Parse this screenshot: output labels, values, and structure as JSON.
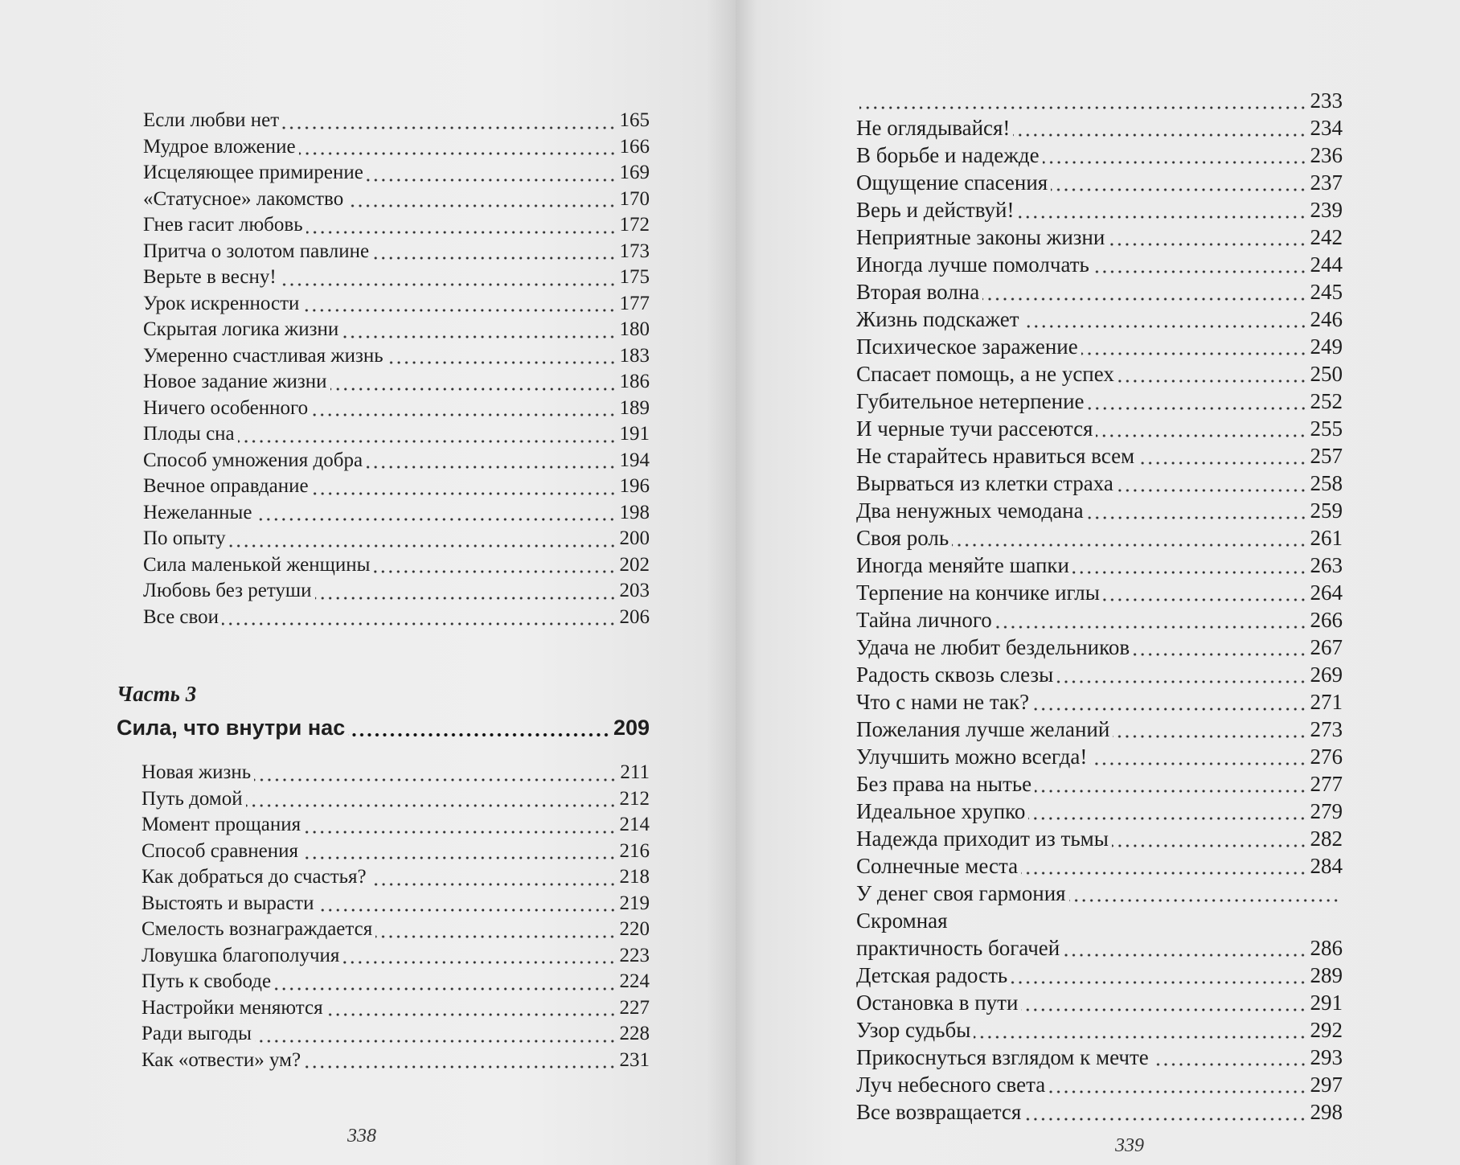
{
  "left_page": {
    "entries_before": [
      {
        "title": "Если любви нет",
        "page": "165"
      },
      {
        "title": "Мудрое вложение",
        "page": "166"
      },
      {
        "title": "Исцеляющее примирение",
        "page": "169"
      },
      {
        "title": "«Статусное» лакомство",
        "page": "170"
      },
      {
        "title": "Гнев гасит любовь",
        "page": "172"
      },
      {
        "title": "Притча о золотом павлине",
        "page": "173"
      },
      {
        "title": "Верьте в весну!",
        "page": "175"
      },
      {
        "title": "Урок искренности",
        "page": "177"
      },
      {
        "title": "Скрытая логика жизни",
        "page": "180"
      },
      {
        "title": "Умеренно счастливая жизнь",
        "page": "183"
      },
      {
        "title": "Новое задание жизни",
        "page": "186"
      },
      {
        "title": "Ничего особенного",
        "page": "189"
      },
      {
        "title": "Плоды сна",
        "page": "191"
      },
      {
        "title": "Способ умножения добра",
        "page": "194"
      },
      {
        "title": "Вечное оправдание",
        "page": "196"
      },
      {
        "title": "Нежеланные",
        "page": "198"
      },
      {
        "title": "По опыту",
        "page": "200"
      },
      {
        "title": "Сила маленькой женщины",
        "page": "202"
      },
      {
        "title": "Любовь без ретуши",
        "page": "203"
      },
      {
        "title": "Все свои",
        "page": "206"
      }
    ],
    "part": {
      "label": "Часть 3",
      "title": "Сила, что внутри нас",
      "page": "209"
    },
    "entries_after": [
      {
        "title": "Новая жизнь",
        "page": "211"
      },
      {
        "title": "Путь домой",
        "page": "212"
      },
      {
        "title": "Момент прощания",
        "page": "214"
      },
      {
        "title": "Способ сравнения",
        "page": "216"
      },
      {
        "title": "Как добраться до счастья?",
        "page": "218"
      },
      {
        "title": "Выстоять и вырасти",
        "page": "219"
      },
      {
        "title": "Смелость вознаграждается",
        "page": "220"
      },
      {
        "title": "Ловушка благополучия",
        "page": "223"
      },
      {
        "title": "Путь к свободе",
        "page": "224"
      },
      {
        "title": "Настройки меняются",
        "page": "227"
      },
      {
        "title": "Ради выгоды",
        "page": "228"
      },
      {
        "title": "Как «отвести» ум?",
        "page": "231"
      }
    ],
    "folio": "338"
  },
  "right_page": {
    "entries": [
      {
        "title": "",
        "page": "233"
      },
      {
        "title": "Не оглядывайся!",
        "page": "234"
      },
      {
        "title": "В борьбе и надежде",
        "page": "236"
      },
      {
        "title": "Ощущение спасения",
        "page": "237"
      },
      {
        "title": "Верь и действуй!",
        "page": "239"
      },
      {
        "title": "Неприятные законы жизни",
        "page": "242"
      },
      {
        "title": "Иногда лучше помолчать",
        "page": "244"
      },
      {
        "title": "Вторая волна",
        "page": "245"
      },
      {
        "title": "Жизнь подскажет",
        "page": "246"
      },
      {
        "title": "Психическое заражение",
        "page": "249"
      },
      {
        "title": "Спасает помощь, а не успех",
        "page": "250"
      },
      {
        "title": "Губительное нетерпение",
        "page": "252"
      },
      {
        "title": "И черные тучи рассеются",
        "page": "255"
      },
      {
        "title": "Не старайтесь нравиться всем",
        "page": "257"
      },
      {
        "title": "Вырваться из клетки страха",
        "page": "258"
      },
      {
        "title": "Два ненужных чемодана",
        "page": "259"
      },
      {
        "title": "Своя роль",
        "page": "261"
      },
      {
        "title": "Иногда меняйте шапки",
        "page": "263"
      },
      {
        "title": "Терпение на кончике иглы",
        "page": "264"
      },
      {
        "title": "Тайна личного",
        "page": "266"
      },
      {
        "title": "Удача не любит бездельников",
        "page": "267"
      },
      {
        "title": "Радость сквозь слезы",
        "page": "269"
      },
      {
        "title": "Что с нами не так?",
        "page": "271"
      },
      {
        "title": "Пожелания лучше желаний",
        "page": "273"
      },
      {
        "title": "Улучшить можно всегда!",
        "page": "276"
      },
      {
        "title": "Без права на нытье",
        "page": "277"
      },
      {
        "title": "Идеальное хрупко",
        "page": "279"
      },
      {
        "title": "Надежда приходит из тьмы",
        "page": "282"
      },
      {
        "title": "Солнечные места",
        "page": "284"
      },
      {
        "title": "У денег своя гармония",
        "page": ""
      },
      {
        "title": "Скромная",
        "page": "",
        "nodots": true
      },
      {
        "title": "практичность богачей",
        "page": "286"
      },
      {
        "title": "Детская радость",
        "page": "289"
      },
      {
        "title": "Остановка в пути",
        "page": "291"
      },
      {
        "title": "Узор судьбы",
        "page": "292"
      },
      {
        "title": "Прикоснуться взглядом к мечте",
        "page": "293"
      },
      {
        "title": "Луч небесного света",
        "page": "297"
      },
      {
        "title": "Все возвращается",
        "page": "298"
      }
    ],
    "folio": "339"
  }
}
